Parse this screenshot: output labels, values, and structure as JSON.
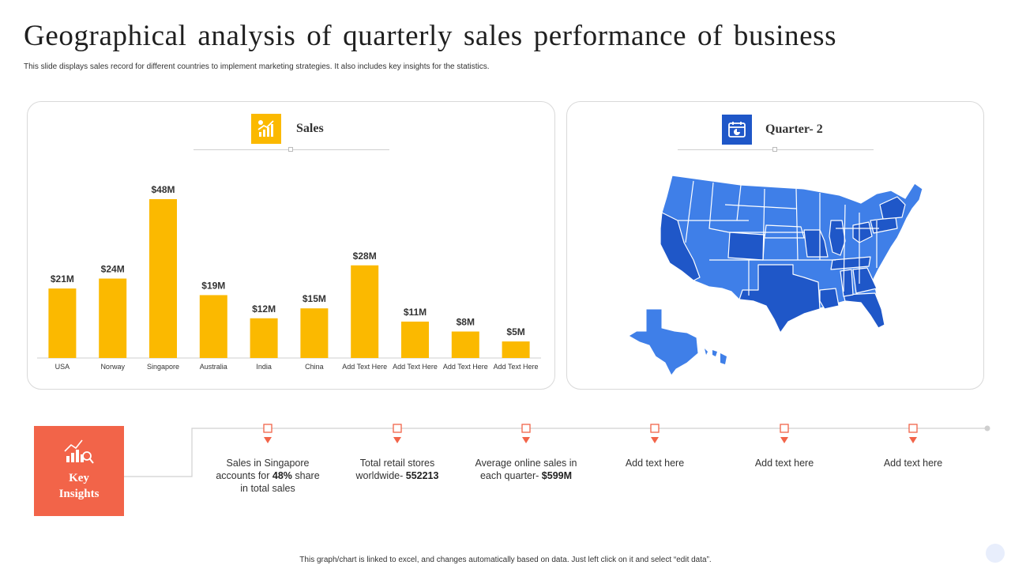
{
  "title": "Geographical analysis of quarterly sales performance of business",
  "subtitle": "This slide displays sales record for different countries to implement marketing strategies. It also includes key insights for the statistics.",
  "colors": {
    "bar": "#fbb900",
    "accent_red": "#f26449",
    "map_dark": "#1f57c8",
    "map_light": "#3f7fe8",
    "icon_blue": "#1f57c8"
  },
  "sales_card": {
    "label": "Sales",
    "icon": "bar-chart-growth-icon"
  },
  "map_card": {
    "label": "Quarter- 2",
    "icon": "calendar-pie-icon"
  },
  "chart_data": {
    "type": "bar",
    "title": "Sales",
    "categories": [
      "USA",
      "Norway",
      "Singapore",
      "Australia",
      "India",
      "China",
      "Add Text Here",
      "Add Text Here",
      "Add Text Here",
      "Add Text Here"
    ],
    "values": [
      21,
      24,
      48,
      19,
      12,
      15,
      28,
      11,
      8,
      5
    ],
    "data_labels": [
      "$21M",
      "$24M",
      "$48M",
      "$19M",
      "$12M",
      "$15M",
      "$28M",
      "$11M",
      "$8M",
      "$5M"
    ],
    "unit": "$M",
    "xlabel": "",
    "ylabel": "",
    "ylim": [
      0,
      48
    ],
    "grid": false,
    "legend": "none"
  },
  "key_insights": {
    "label_line1": "Key",
    "label_line2": "Insights",
    "icon": "chart-magnifier-icon",
    "items": [
      {
        "pre": "Sales in Singapore accounts for ",
        "bold": "48%",
        "post": " share in total sales"
      },
      {
        "pre": "Total retail stores worldwide- ",
        "bold": "552213",
        "post": ""
      },
      {
        "pre": "Average online sales in each quarter- ",
        "bold": "$599M",
        "post": ""
      },
      {
        "pre": "Add text here",
        "bold": "",
        "post": ""
      },
      {
        "pre": "Add text here",
        "bold": "",
        "post": ""
      },
      {
        "pre": "Add text here",
        "bold": "",
        "post": ""
      }
    ]
  },
  "footer": "This graph/chart is linked to excel, and changes automatically based on data. Just left click on it and select “edit data”."
}
